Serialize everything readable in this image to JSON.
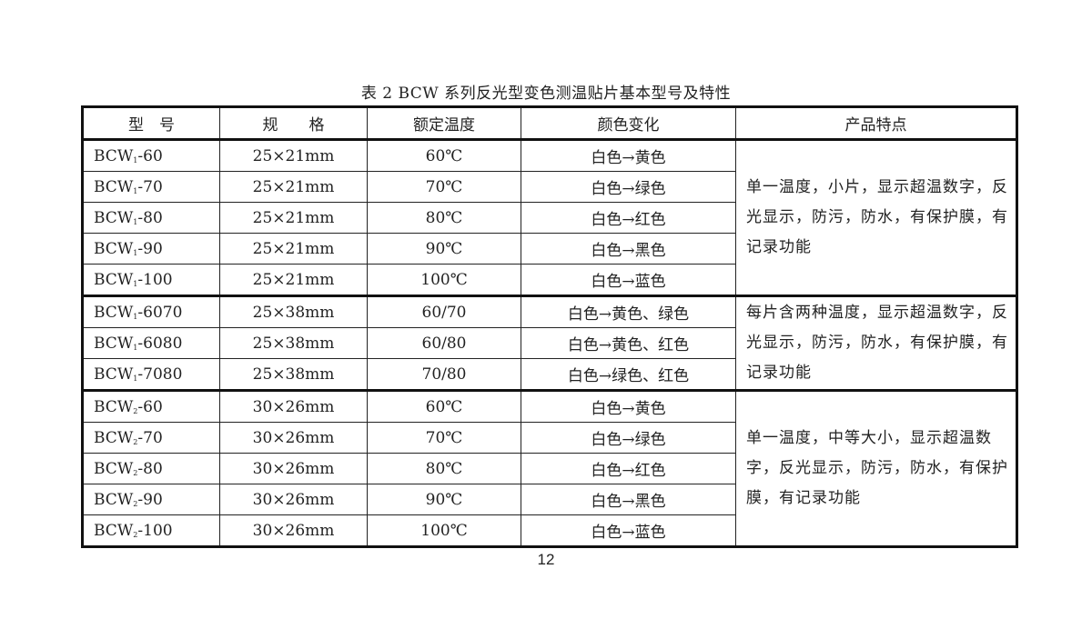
{
  "title": "表 2   BCW 系列反光型变色测温贴片基本型号及特性",
  "headers": [
    "型　号",
    "规　　格",
    "额定温度",
    "颜色变化",
    "产品特点"
  ],
  "groups": [
    {
      "feature": "单一温度，小片，显示超温数字，反光显示，防污，防水，有保护膜，有记录功能",
      "rows": [
        {
          "model_prefix": "BCW",
          "model_sub": "1",
          "model_suffix": "-60",
          "size": "25×21mm",
          "temp": "60℃",
          "color": "白色→黄色"
        },
        {
          "model_prefix": "BCW",
          "model_sub": "1",
          "model_suffix": "-70",
          "size": "25×21mm",
          "temp": "70℃",
          "color": "白色→绿色"
        },
        {
          "model_prefix": "BCW",
          "model_sub": "1",
          "model_suffix": "-80",
          "size": "25×21mm",
          "temp": "80℃",
          "color": "白色→红色"
        },
        {
          "model_prefix": "BCW",
          "model_sub": "1",
          "model_suffix": "-90",
          "size": "25×21mm",
          "temp": "90℃",
          "color": "白色→黑色"
        },
        {
          "model_prefix": "BCW",
          "model_sub": "1",
          "model_suffix": "-100",
          "size": "25×21mm",
          "temp": "100℃",
          "color": "白色→蓝色"
        }
      ]
    },
    {
      "feature": "每片含两种温度，显示超温数字，反光显示，防污，防水，有保护膜，有记录功能",
      "rows": [
        {
          "model_prefix": "BCW",
          "model_sub": "1",
          "model_suffix": "-6070",
          "size": "25×38mm",
          "temp": "60/70",
          "color": "白色→黄色、绿色"
        },
        {
          "model_prefix": "BCW",
          "model_sub": "1",
          "model_suffix": "-6080",
          "size": "25×38mm",
          "temp": "60/80",
          "color": "白色→黄色、红色"
        },
        {
          "model_prefix": "BCW",
          "model_sub": "1",
          "model_suffix": "-7080",
          "size": "25×38mm",
          "temp": "70/80",
          "color": "白色→绿色、红色"
        }
      ]
    },
    {
      "feature": "单一温度，中等大小，显示超温数字，反光显示，防污，防水，有保护膜，有记录功能",
      "rows": [
        {
          "model_prefix": "BCW",
          "model_sub": "2",
          "model_suffix": "-60",
          "size": "30×26mm",
          "temp": "60℃",
          "color": "白色→黄色"
        },
        {
          "model_prefix": "BCW",
          "model_sub": "2",
          "model_suffix": "-70",
          "size": "30×26mm",
          "temp": "70℃",
          "color": "白色→绿色"
        },
        {
          "model_prefix": "BCW",
          "model_sub": "2",
          "model_suffix": "-80",
          "size": "30×26mm",
          "temp": "80℃",
          "color": "白色→红色"
        },
        {
          "model_prefix": "BCW",
          "model_sub": "2",
          "model_suffix": "-90",
          "size": "30×26mm",
          "temp": "90℃",
          "color": "白色→黑色"
        },
        {
          "model_prefix": "BCW",
          "model_sub": "2",
          "model_suffix": "-100",
          "size": "30×26mm",
          "temp": "100℃",
          "color": "白色→蓝色"
        }
      ]
    }
  ],
  "page_number": "12"
}
